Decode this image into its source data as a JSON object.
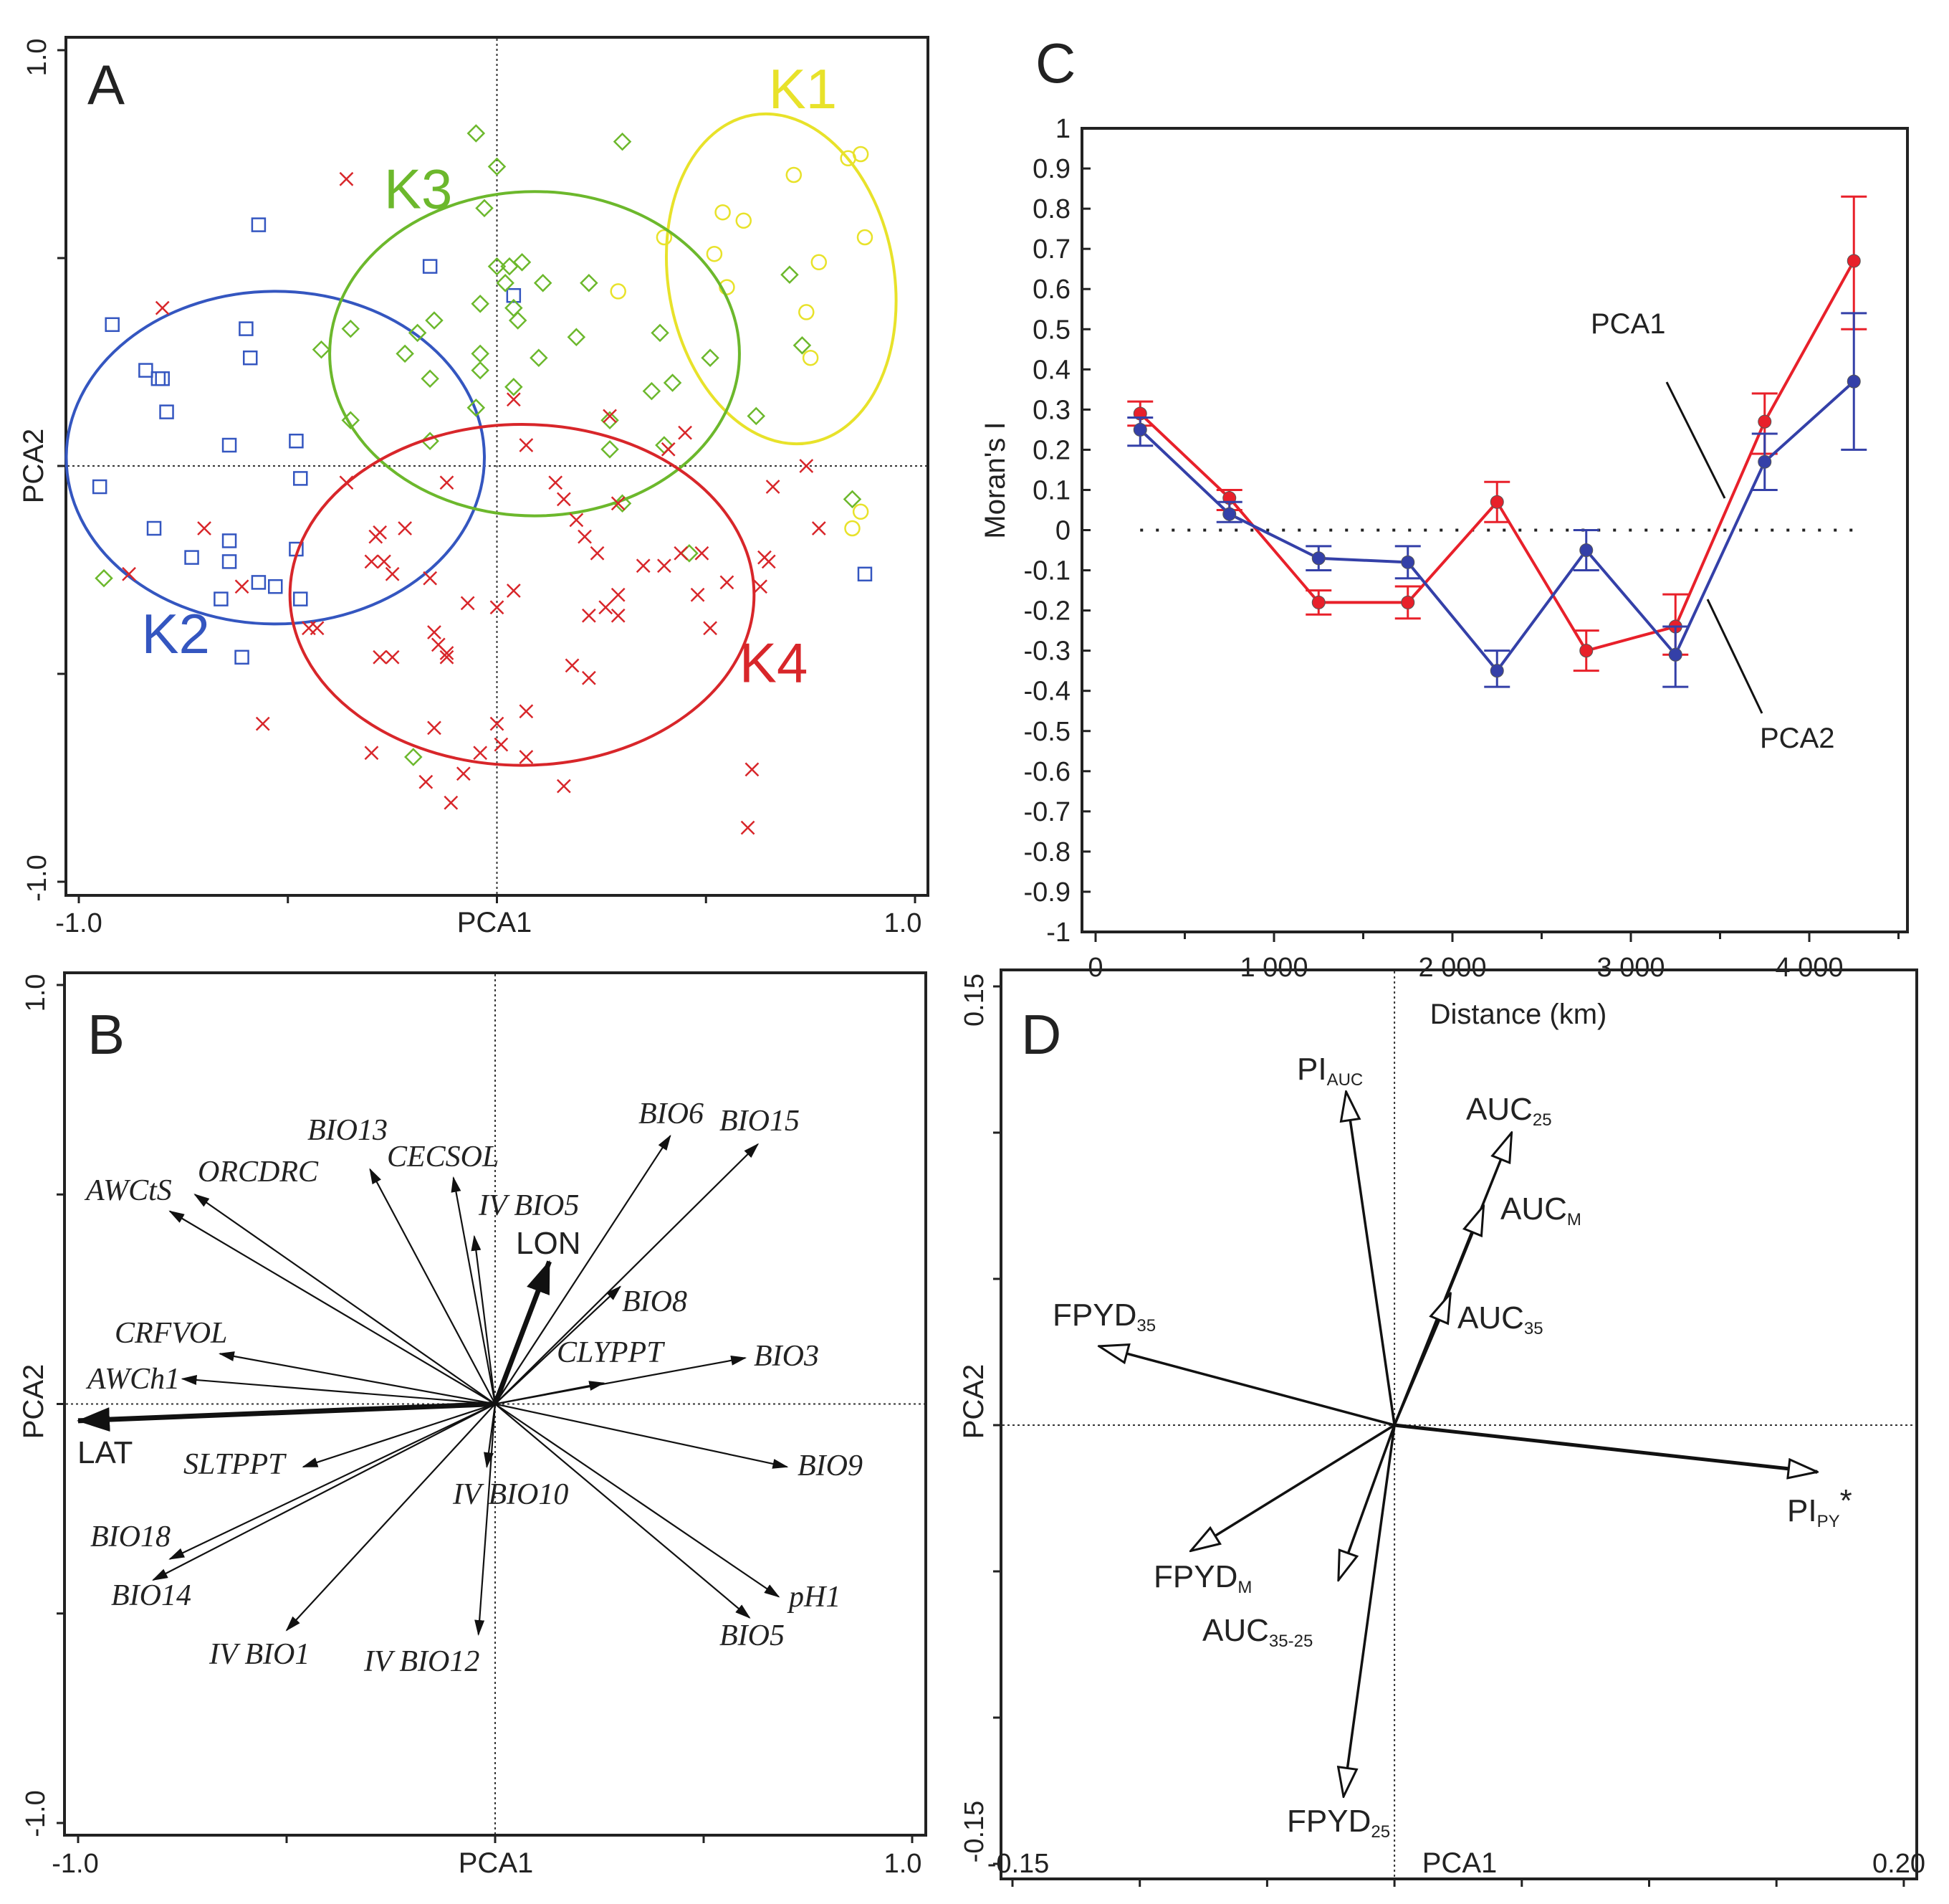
{
  "colors": {
    "K1": "#e8e22a",
    "K2": "#3456c0",
    "K3": "#6cb82c",
    "K4": "#d8262a",
    "PCA1_line": "#e8202a",
    "PCA2_line": "#3440a8"
  },
  "panels": {
    "A": {
      "letter": "A",
      "xlabel": "PCA1",
      "ylabel": "PCA2",
      "xmin_label": "-1.0",
      "xmax_label": "1.0",
      "ymin_label": "-1.0",
      "ymax_label": "1.0"
    },
    "B": {
      "letter": "B",
      "xlabel": "PCA1",
      "ylabel": "PCA2",
      "xmin_label": "-1.0",
      "xmax_label": "1.0",
      "ymin_label": "-1.0",
      "ymax_label": "1.0"
    },
    "C": {
      "letter": "C",
      "xlabel": "Distance (km)",
      "ylabel": "Moran's I",
      "series_label_1": "PCA1",
      "series_label_2": "PCA2"
    },
    "D": {
      "letter": "D",
      "xlabel": "PCA1",
      "ylabel": "PCA2",
      "xmin_label": "-0.15",
      "xmax_label": "0.20",
      "ymin_label": "-0.15",
      "ymax_label": "0.15"
    }
  },
  "chart_data": [
    {
      "panel": "A",
      "type": "scatter",
      "xlabel": "PCA1",
      "ylabel": "PCA2",
      "xlim": [
        -1,
        1
      ],
      "ylim": [
        -1,
        1
      ],
      "clusters": [
        {
          "name": "K1",
          "marker": "circle",
          "label_at": [
            0.65,
            0.86
          ],
          "ellipse": {
            "cx": 0.68,
            "cy": 0.45,
            "rx": 0.27,
            "ry": 0.4,
            "angle": -10
          },
          "points": [
            [
              0.84,
              0.74
            ],
            [
              0.87,
              0.75
            ],
            [
              0.71,
              0.7
            ],
            [
              0.54,
              0.61
            ],
            [
              0.59,
              0.59
            ],
            [
              0.4,
              0.55
            ],
            [
              0.88,
              0.55
            ],
            [
              0.52,
              0.51
            ],
            [
              0.77,
              0.49
            ],
            [
              0.55,
              0.43
            ],
            [
              0.29,
              0.42
            ],
            [
              0.74,
              0.37
            ],
            [
              0.75,
              0.26
            ],
            [
              0.87,
              -0.11
            ],
            [
              0.85,
              -0.15
            ]
          ]
        },
        {
          "name": "K2",
          "marker": "square",
          "label_at": [
            -0.85,
            -0.45
          ],
          "ellipse": {
            "cx": -0.53,
            "cy": 0.02,
            "rx": 0.5,
            "ry": 0.4,
            "angle": 0
          },
          "points": [
            [
              -0.92,
              0.34
            ],
            [
              -0.57,
              0.58
            ],
            [
              -0.6,
              0.33
            ],
            [
              -0.59,
              0.26
            ],
            [
              -0.84,
              0.23
            ],
            [
              -0.81,
              0.21
            ],
            [
              -0.8,
              0.21
            ],
            [
              -0.79,
              0.13
            ],
            [
              -0.64,
              0.05
            ],
            [
              -0.48,
              0.06
            ],
            [
              -0.47,
              -0.03
            ],
            [
              -0.95,
              -0.05
            ],
            [
              -0.82,
              -0.15
            ],
            [
              -0.64,
              -0.18
            ],
            [
              -0.73,
              -0.22
            ],
            [
              -0.64,
              -0.23
            ],
            [
              -0.48,
              -0.2
            ],
            [
              -0.57,
              -0.28
            ],
            [
              -0.53,
              -0.29
            ],
            [
              -0.66,
              -0.32
            ],
            [
              -0.47,
              -0.32
            ],
            [
              -0.61,
              -0.46
            ],
            [
              -0.16,
              0.48
            ],
            [
              0.04,
              0.41
            ],
            [
              0.88,
              -0.26
            ]
          ]
        },
        {
          "name": "K3",
          "marker": "diamond",
          "label_at": [
            -0.27,
            0.62
          ],
          "ellipse": {
            "cx": 0.09,
            "cy": 0.27,
            "rx": 0.49,
            "ry": 0.39,
            "angle": 0
          },
          "points": [
            [
              -0.05,
              0.8
            ],
            [
              0.3,
              0.78
            ],
            [
              0.0,
              0.72
            ],
            [
              -0.03,
              0.62
            ],
            [
              0.0,
              0.48
            ],
            [
              0.03,
              0.48
            ],
            [
              0.06,
              0.49
            ],
            [
              0.02,
              0.44
            ],
            [
              0.11,
              0.44
            ],
            [
              0.22,
              0.44
            ],
            [
              -0.04,
              0.39
            ],
            [
              0.04,
              0.38
            ],
            [
              0.05,
              0.35
            ],
            [
              -0.15,
              0.35
            ],
            [
              -0.35,
              0.33
            ],
            [
              -0.19,
              0.32
            ],
            [
              -0.42,
              0.28
            ],
            [
              -0.22,
              0.27
            ],
            [
              -0.04,
              0.27
            ],
            [
              -0.04,
              0.23
            ],
            [
              0.1,
              0.26
            ],
            [
              0.19,
              0.31
            ],
            [
              0.39,
              0.32
            ],
            [
              0.7,
              0.46
            ],
            [
              0.51,
              0.26
            ],
            [
              0.73,
              0.29
            ],
            [
              -0.16,
              0.21
            ],
            [
              0.04,
              0.19
            ],
            [
              0.37,
              0.18
            ],
            [
              0.42,
              0.2
            ],
            [
              -0.05,
              0.14
            ],
            [
              -0.35,
              0.11
            ],
            [
              -0.16,
              0.06
            ],
            [
              0.27,
              0.04
            ],
            [
              0.4,
              0.05
            ],
            [
              0.62,
              0.12
            ],
            [
              0.85,
              -0.08
            ],
            [
              -0.94,
              -0.27
            ],
            [
              -0.2,
              -0.7
            ],
            [
              0.46,
              -0.21
            ],
            [
              0.3,
              -0.09
            ],
            [
              0.27,
              0.11
            ]
          ]
        },
        {
          "name": "K4",
          "marker": "cross",
          "label_at": [
            0.58,
            -0.52
          ],
          "ellipse": {
            "cx": 0.06,
            "cy": -0.31,
            "rx": 0.555,
            "ry": 0.41,
            "angle": 0
          },
          "points": [
            [
              -0.36,
              0.69
            ],
            [
              -0.8,
              0.38
            ],
            [
              0.04,
              0.16
            ],
            [
              0.07,
              0.05
            ],
            [
              0.27,
              0.12
            ],
            [
              0.45,
              0.08
            ],
            [
              0.41,
              0.04
            ],
            [
              0.74,
              0.0
            ],
            [
              0.66,
              -0.05
            ],
            [
              0.77,
              -0.15
            ],
            [
              -0.36,
              -0.04
            ],
            [
              -0.12,
              -0.04
            ],
            [
              0.14,
              -0.04
            ],
            [
              0.16,
              -0.08
            ],
            [
              0.29,
              -0.09
            ],
            [
              0.19,
              -0.13
            ],
            [
              0.21,
              -0.17
            ],
            [
              0.24,
              -0.21
            ],
            [
              -0.7,
              -0.15
            ],
            [
              -0.22,
              -0.15
            ],
            [
              -0.28,
              -0.16
            ],
            [
              -0.29,
              -0.17
            ],
            [
              -0.3,
              -0.23
            ],
            [
              -0.27,
              -0.23
            ],
            [
              -0.25,
              -0.26
            ],
            [
              -0.16,
              -0.27
            ],
            [
              -0.88,
              -0.26
            ],
            [
              -0.61,
              -0.29
            ],
            [
              0.35,
              -0.24
            ],
            [
              0.4,
              -0.24
            ],
            [
              0.44,
              -0.21
            ],
            [
              0.49,
              -0.21
            ],
            [
              0.64,
              -0.22
            ],
            [
              0.65,
              -0.23
            ],
            [
              0.55,
              -0.28
            ],
            [
              0.48,
              -0.31
            ],
            [
              0.63,
              -0.29
            ],
            [
              0.04,
              -0.3
            ],
            [
              0.0,
              -0.34
            ],
            [
              -0.07,
              -0.33
            ],
            [
              0.29,
              -0.31
            ],
            [
              0.22,
              -0.36
            ],
            [
              0.26,
              -0.34
            ],
            [
              0.29,
              -0.36
            ],
            [
              0.51,
              -0.39
            ],
            [
              -0.45,
              -0.39
            ],
            [
              -0.43,
              -0.39
            ],
            [
              -0.15,
              -0.4
            ],
            [
              -0.14,
              -0.43
            ],
            [
              -0.12,
              -0.45
            ],
            [
              -0.12,
              -0.46
            ],
            [
              -0.28,
              -0.46
            ],
            [
              -0.25,
              -0.46
            ],
            [
              0.18,
              -0.48
            ],
            [
              0.22,
              -0.51
            ],
            [
              -0.56,
              -0.62
            ],
            [
              -0.15,
              -0.63
            ],
            [
              0.0,
              -0.62
            ],
            [
              0.07,
              -0.59
            ],
            [
              0.01,
              -0.67
            ],
            [
              -0.04,
              -0.69
            ],
            [
              0.07,
              -0.7
            ],
            [
              -0.3,
              -0.69
            ],
            [
              -0.17,
              -0.76
            ],
            [
              -0.08,
              -0.74
            ],
            [
              -0.11,
              -0.81
            ],
            [
              0.16,
              -0.77
            ],
            [
              0.61,
              -0.73
            ],
            [
              0.6,
              -0.87
            ]
          ]
        }
      ]
    },
    {
      "panel": "B",
      "type": "biplot",
      "xlabel": "PCA1",
      "ylabel": "PCA2",
      "xlim": [
        -1,
        1
      ],
      "ylim": [
        -1,
        1
      ],
      "vectors": [
        {
          "label": "LAT",
          "x": -1.0,
          "y": -0.04,
          "bold": true
        },
        {
          "label": "LON",
          "x": 0.13,
          "y": 0.34,
          "bold": true
        },
        {
          "label": "AWCtS",
          "x": -0.78,
          "y": 0.46
        },
        {
          "label": "ORCDRC",
          "x": -0.72,
          "y": 0.5
        },
        {
          "label": "BIO13",
          "x": -0.3,
          "y": 0.56
        },
        {
          "label": "CECSOL",
          "x": -0.1,
          "y": 0.54
        },
        {
          "label": "IV BIO5",
          "x": -0.05,
          "y": 0.4
        },
        {
          "label": "BIO6",
          "x": 0.42,
          "y": 0.64
        },
        {
          "label": "BIO15",
          "x": 0.63,
          "y": 0.62
        },
        {
          "label": "BIO8",
          "x": 0.3,
          "y": 0.28
        },
        {
          "label": "CLYPPT",
          "x": 0.26,
          "y": 0.05
        },
        {
          "label": "BIO3",
          "x": 0.6,
          "y": 0.11
        },
        {
          "label": "CRFVOL",
          "x": -0.66,
          "y": 0.12
        },
        {
          "label": "AWCh1",
          "x": -0.75,
          "y": 0.06
        },
        {
          "label": "SLTPPT",
          "x": -0.46,
          "y": -0.15
        },
        {
          "label": "IV BIO10",
          "x": -0.02,
          "y": -0.15
        },
        {
          "label": "BIO9",
          "x": 0.7,
          "y": -0.15
        },
        {
          "label": "BIO18",
          "x": -0.78,
          "y": -0.37
        },
        {
          "label": "BIO14",
          "x": -0.82,
          "y": -0.42
        },
        {
          "label": "IV BIO1",
          "x": -0.5,
          "y": -0.54
        },
        {
          "label": "IV BIO12",
          "x": -0.04,
          "y": -0.55
        },
        {
          "label": "pH1",
          "x": 0.68,
          "y": -0.46
        },
        {
          "label": "BIO5",
          "x": 0.61,
          "y": -0.51
        }
      ]
    },
    {
      "panel": "C",
      "type": "line",
      "title": "",
      "xlabel": "Distance (km)",
      "ylabel": "Moran's I",
      "xlim": [
        0,
        4550
      ],
      "ylim": [
        -1,
        1
      ],
      "xticks": [
        0,
        1000,
        2000,
        3000,
        4000
      ],
      "xtick_labels": [
        "0",
        "1 000",
        "2 000",
        "3 000",
        "4 000"
      ],
      "yticks": [
        1,
        0.9,
        0.8,
        0.7,
        0.6,
        0.5,
        0.4,
        0.3,
        0.2,
        0.1,
        0,
        -0.1,
        -0.2,
        -0.3,
        -0.4,
        -0.5,
        -0.6,
        -0.7,
        -0.8,
        -0.9,
        -1
      ],
      "ytick_labels": [
        "1",
        "0.9",
        "0.8",
        "0.7",
        "0.6",
        "0.5",
        "0.4",
        "0.3",
        "0.2",
        "0.1",
        "0",
        "-0.1",
        "-0.2",
        "-0.3",
        "-0.4",
        "-0.5",
        "-0.6",
        "-0.7",
        "-0.8",
        "-0.9",
        "-1"
      ],
      "reference_line": 0,
      "x": [
        250,
        750,
        1250,
        1750,
        2250,
        2750,
        3250,
        3750,
        4250
      ],
      "series": [
        {
          "name": "PCA1",
          "color": "#e8202a",
          "values": [
            0.29,
            0.08,
            -0.18,
            -0.18,
            0.07,
            -0.3,
            -0.24,
            0.27,
            0.67
          ],
          "err_low": [
            0.26,
            0.05,
            -0.21,
            -0.22,
            0.02,
            -0.35,
            -0.31,
            0.19,
            0.5
          ],
          "err_high": [
            0.32,
            0.1,
            -0.15,
            -0.14,
            0.12,
            -0.25,
            -0.16,
            0.34,
            0.83
          ]
        },
        {
          "name": "PCA2",
          "color": "#3440a8",
          "values": [
            0.25,
            0.04,
            -0.07,
            -0.08,
            -0.35,
            -0.05,
            -0.31,
            0.17,
            0.37
          ],
          "err_low": [
            0.21,
            0.02,
            -0.1,
            -0.12,
            -0.39,
            -0.1,
            -0.39,
            0.1,
            0.2
          ],
          "err_high": [
            0.28,
            0.07,
            -0.04,
            -0.04,
            -0.3,
            0.0,
            -0.24,
            0.24,
            0.54
          ]
        }
      ]
    },
    {
      "panel": "D",
      "type": "biplot",
      "xlabel": "PCA1",
      "ylabel": "PCA2",
      "xlim": [
        -0.15,
        0.2
      ],
      "ylim": [
        -0.15,
        0.15
      ],
      "vectors": [
        {
          "label": "PI",
          "sub": "AUC",
          "sup": "",
          "x": -0.019,
          "y": 0.114
        },
        {
          "label": "AUC",
          "sub": "25",
          "sup": "",
          "x": 0.046,
          "y": 0.1
        },
        {
          "label": "AUC",
          "sub": "M",
          "sup": "",
          "x": 0.035,
          "y": 0.075
        },
        {
          "label": "AUC",
          "sub": "35",
          "sup": "",
          "x": 0.022,
          "y": 0.045
        },
        {
          "label": "FPYD",
          "sub": "35",
          "sup": "",
          "x": -0.116,
          "y": 0.027
        },
        {
          "label": "PI",
          "sub": "PY",
          "sup": "*",
          "x": 0.166,
          "y": -0.016,
          "bold": true
        },
        {
          "label": "FPYD",
          "sub": "M",
          "sup": "",
          "x": -0.08,
          "y": -0.043
        },
        {
          "label": "AUC",
          "sub": "35-25",
          "sup": "",
          "x": -0.022,
          "y": -0.053
        },
        {
          "label": "FPYD",
          "sub": "25",
          "sup": "",
          "x": -0.02,
          "y": -0.127
        }
      ]
    }
  ]
}
